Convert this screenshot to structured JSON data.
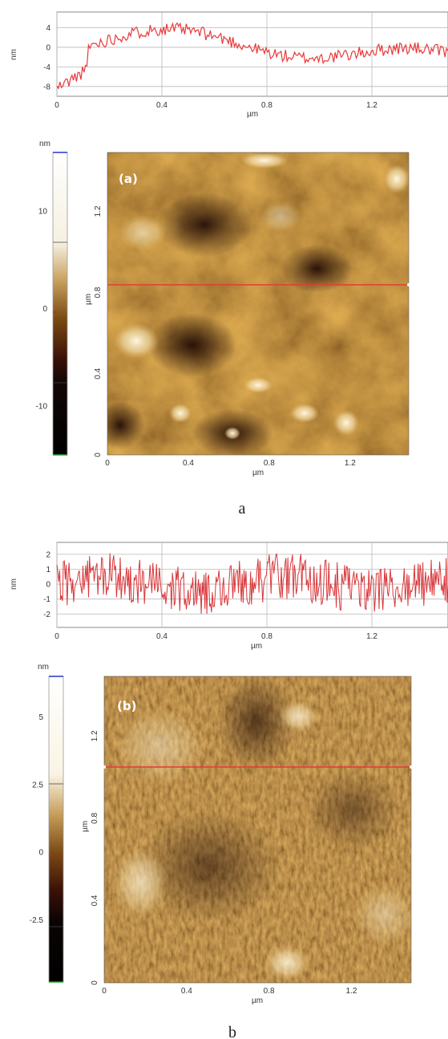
{
  "figures": [
    {
      "id": "a",
      "caption": "a",
      "panel_label": "(a)",
      "profile": {
        "y_unit": "nm",
        "x_unit": "µm",
        "y_ticks": [
          "4",
          "0",
          "-4",
          "-8"
        ],
        "x_ticks": [
          "0",
          "0.4",
          "0.8",
          "1.2"
        ],
        "line_color": "#e8393a"
      },
      "colorbar": {
        "unit": "nm",
        "ticks": [
          "10",
          "0",
          "-10"
        ]
      },
      "image": {
        "x_unit": "µm",
        "y_unit": "µm",
        "x_ticks": [
          "0",
          "0.4",
          "0.8",
          "1.2"
        ],
        "y_ticks": [
          "0",
          "0.4",
          "0.8",
          "1.2"
        ],
        "scan_line_color": "#e8393a"
      }
    },
    {
      "id": "b",
      "caption": "b",
      "panel_label": "(b)",
      "profile": {
        "y_unit": "nm",
        "x_unit": "µm",
        "y_ticks": [
          "2",
          "1",
          "0",
          "-1",
          "-2"
        ],
        "x_ticks": [
          "0",
          "0.4",
          "0.8",
          "1.2"
        ],
        "line_color": "#d9363a"
      },
      "colorbar": {
        "unit": "nm",
        "ticks": [
          "5",
          "2.5",
          "0",
          "-2.5"
        ]
      },
      "image": {
        "x_unit": "µm",
        "y_unit": "µm",
        "x_ticks": [
          "0",
          "0.4",
          "0.8",
          "1.2"
        ],
        "y_ticks": [
          "0",
          "0.4",
          "0.8",
          "1.2"
        ],
        "scan_line_color": "#e8393a"
      }
    }
  ]
}
